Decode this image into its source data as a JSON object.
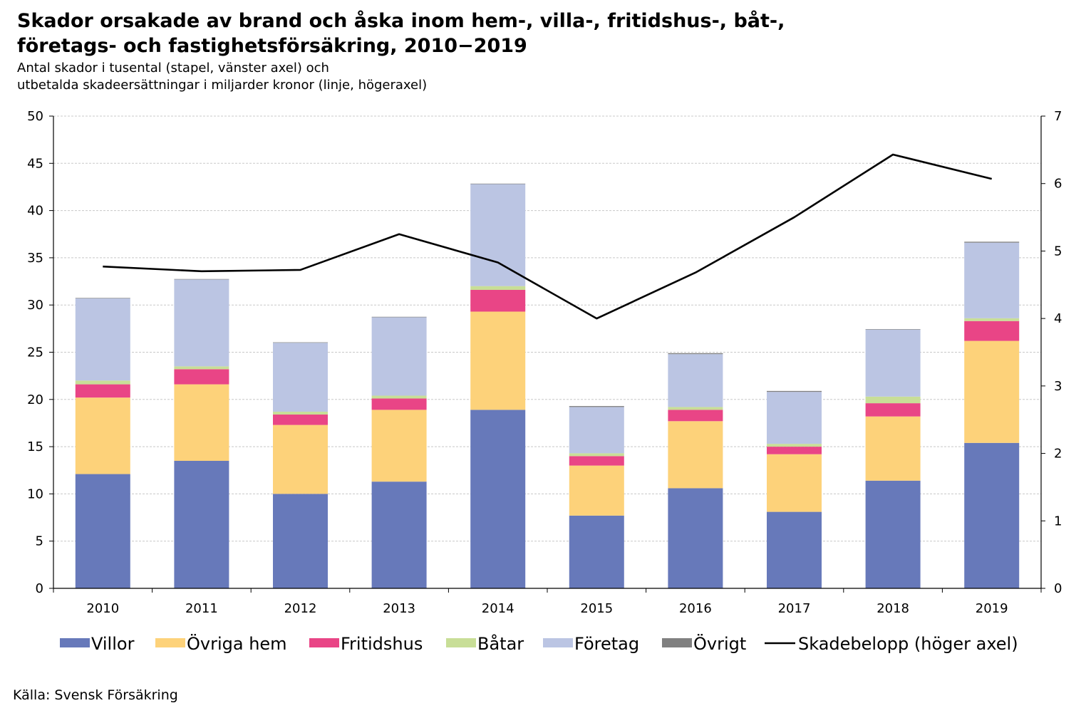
{
  "title_line1": "Skador orsakade av brand och åska inom hem-, villa-, fritidshus-, båt-,",
  "title_line2": "företags- och fastighetsförsäkring, 2010−2019",
  "subtitle_line1": "Antal skador i tusental (stapel, vänster axel) och",
  "subtitle_line2": "utbetalda skadeersättningar i miljarder kronor (linje, högeraxel)",
  "source": "Källa: Svensk Försäkring",
  "chart_data": {
    "type": "bar",
    "stacked": true,
    "categories": [
      "2010",
      "2011",
      "2012",
      "2013",
      "2014",
      "2015",
      "2016",
      "2017",
      "2018",
      "2019"
    ],
    "series": [
      {
        "name": "Villor",
        "color": "#6779BA",
        "values": [
          12.1,
          13.5,
          10.0,
          11.3,
          18.9,
          7.7,
          10.6,
          8.1,
          11.4,
          15.4
        ]
      },
      {
        "name": "Övriga hem",
        "color": "#FDD27A",
        "values": [
          8.1,
          8.1,
          7.3,
          7.6,
          10.4,
          5.3,
          7.1,
          6.1,
          6.8,
          10.8
        ]
      },
      {
        "name": "Fritidshus",
        "color": "#E94586",
        "values": [
          1.4,
          1.6,
          1.1,
          1.2,
          2.3,
          1.0,
          1.2,
          0.8,
          1.4,
          2.1
        ]
      },
      {
        "name": "Båtar",
        "color": "#C8DE97",
        "values": [
          0.4,
          0.3,
          0.3,
          0.3,
          0.4,
          0.3,
          0.3,
          0.3,
          0.7,
          0.3
        ]
      },
      {
        "name": "Företag",
        "color": "#BBC5E3",
        "values": [
          8.7,
          9.2,
          7.3,
          8.3,
          10.8,
          4.9,
          5.6,
          5.5,
          7.1,
          8.0
        ]
      },
      {
        "name": "Övrigt",
        "color": "#808080",
        "values": [
          0.05,
          0.05,
          0.05,
          0.05,
          0.05,
          0.1,
          0.1,
          0.1,
          0.05,
          0.1
        ]
      }
    ],
    "line_series": {
      "name": "Skadebelopp (höger axel)",
      "color": "#000000",
      "values": [
        4.77,
        4.7,
        4.72,
        5.25,
        4.83,
        4.0,
        4.68,
        5.5,
        6.43,
        6.07
      ]
    },
    "ylim_left": [
      0,
      50
    ],
    "ylim_right": [
      0,
      7
    ],
    "yticks_left": [
      "0",
      "5",
      "10",
      "15",
      "20",
      "25",
      "30",
      "35",
      "40",
      "45",
      "50"
    ],
    "yticks_right": [
      "0",
      "1",
      "2",
      "3",
      "4",
      "5",
      "6",
      "7"
    ],
    "grid": true,
    "legend_position": "bottom"
  }
}
